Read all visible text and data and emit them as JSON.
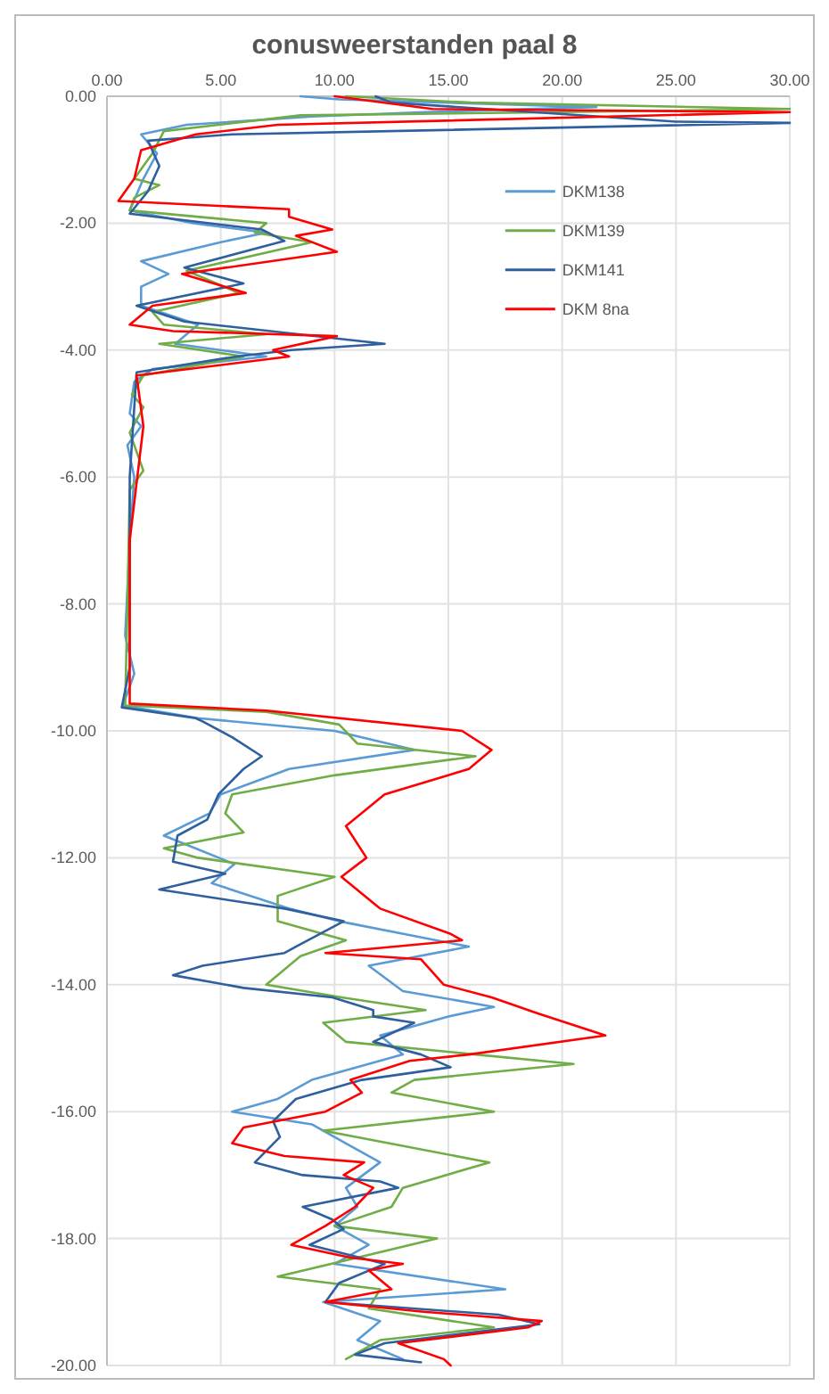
{
  "chart_data": {
    "type": "line",
    "title": "conusweerstanden paal 8",
    "xlim": [
      0,
      30
    ],
    "xticks": [
      {
        "value": 0,
        "label": "0.00"
      },
      {
        "value": 5,
        "label": "5.00"
      },
      {
        "value": 10,
        "label": "10.00"
      },
      {
        "value": 15,
        "label": "15.00"
      },
      {
        "value": 20,
        "label": "20.00"
      },
      {
        "value": 25,
        "label": "25.00"
      },
      {
        "value": 30,
        "label": "30.00"
      }
    ],
    "ylim": [
      -20,
      0
    ],
    "yticks": [
      {
        "value": 0,
        "label": "0.00"
      },
      {
        "value": -2,
        "label": "-2.00"
      },
      {
        "value": -4,
        "label": "-4.00"
      },
      {
        "value": -6,
        "label": "-6.00"
      },
      {
        "value": -8,
        "label": "-8.00"
      },
      {
        "value": -10,
        "label": "-10.00"
      },
      {
        "value": -12,
        "label": "-12.00"
      },
      {
        "value": -14,
        "label": "-14.00"
      },
      {
        "value": -16,
        "label": "-16.00"
      },
      {
        "value": -18,
        "label": "-18.00"
      },
      {
        "value": -20,
        "label": "-20.00"
      }
    ],
    "grid": true,
    "legend": "top right",
    "marker": "none",
    "line_style": "solid",
    "series": [
      {
        "name": "DKM138",
        "color": "#5b9bd5",
        "x": [
          8.5,
          10.2,
          21.5,
          14,
          9,
          3.5,
          1.5,
          2.2,
          1.6,
          1,
          3.8,
          7,
          5,
          1.5,
          2.7,
          1.5,
          1.5,
          4,
          3,
          7,
          2,
          1.2,
          1,
          1.5,
          0.9,
          1.2,
          1,
          0.8,
          1.2,
          0.7,
          4,
          10,
          13.5,
          8,
          6.5,
          5,
          4.5,
          2.5,
          5.6,
          4.6,
          8,
          10.2,
          15.9,
          11.5,
          13,
          17,
          15,
          12,
          13,
          9,
          7.5,
          5.5,
          9,
          10.5,
          12,
          10.5,
          11,
          10,
          11.5,
          10,
          17.5,
          9.5,
          12,
          11,
          13
        ],
        "values": [
          0,
          -0.05,
          -0.17,
          -0.25,
          -0.32,
          -0.45,
          -0.6,
          -0.9,
          -1.3,
          -1.8,
          -2,
          -2.15,
          -2.3,
          -2.6,
          -2.8,
          -3,
          -3.3,
          -3.6,
          -3.9,
          -4.1,
          -4.3,
          -4.5,
          -5,
          -5.2,
          -5.5,
          -6,
          -7,
          -8.5,
          -9.1,
          -9.6,
          -9.8,
          -10,
          -10.3,
          -10.6,
          -10.8,
          -11,
          -11.3,
          -11.65,
          -12.1,
          -12.4,
          -12.8,
          -13,
          -13.4,
          -13.7,
          -14.1,
          -14.35,
          -14.5,
          -14.8,
          -15.1,
          -15.5,
          -15.8,
          -16,
          -16.2,
          -16.5,
          -16.8,
          -17.2,
          -17.5,
          -17.8,
          -18.1,
          -18.4,
          -18.8,
          -19,
          -19.3,
          -19.6,
          -19.9
        ]
      },
      {
        "name": "DKM139",
        "color": "#70ad47",
        "x": [
          10.5,
          16,
          30,
          20,
          8.5,
          2.5,
          2,
          1.2,
          2.3,
          1.2,
          1,
          7,
          6.5,
          9,
          3.5,
          5.8,
          2,
          2.5,
          7,
          2.3,
          6,
          1.6,
          1.1,
          1.6,
          1,
          1.6,
          1,
          0.9,
          0.8,
          7,
          10.2,
          11,
          16.2,
          10,
          5.5,
          5.2,
          6,
          2.5,
          4,
          10,
          7.5,
          7.5,
          10.5,
          8.5,
          7,
          10.3,
          14,
          9.5,
          10.5,
          20.5,
          13.5,
          12.5,
          17,
          9.5,
          16.8,
          13,
          12.5,
          10,
          14.5,
          11,
          7.5,
          12,
          11.5,
          17,
          12,
          10.5
        ],
        "values": [
          0,
          -0.1,
          -0.2,
          -0.25,
          -0.3,
          -0.55,
          -0.9,
          -1.3,
          -1.4,
          -1.6,
          -1.8,
          -2,
          -2.15,
          -2.3,
          -2.75,
          -3.1,
          -3.4,
          -3.6,
          -3.75,
          -3.9,
          -4.1,
          -4.4,
          -4.7,
          -4.9,
          -5.3,
          -5.9,
          -6.2,
          -8,
          -9.6,
          -9.7,
          -9.9,
          -10.2,
          -10.4,
          -10.7,
          -11,
          -11.3,
          -11.6,
          -11.85,
          -12,
          -12.3,
          -12.6,
          -13,
          -13.3,
          -13.55,
          -14,
          -14.2,
          -14.4,
          -14.6,
          -14.9,
          -15.25,
          -15.5,
          -15.7,
          -16,
          -16.3,
          -16.8,
          -17.2,
          -17.5,
          -17.8,
          -18,
          -18.3,
          -18.6,
          -18.8,
          -19.1,
          -19.4,
          -19.6,
          -19.9
        ]
      },
      {
        "name": "DKM141",
        "color": "#2e5f9e",
        "x": [
          11.8,
          12.5,
          25,
          30,
          5.5,
          1.8,
          2.3,
          1.8,
          1,
          6.8,
          7.8,
          3.4,
          6,
          1.3,
          3.4,
          12.2,
          8.1,
          5.7,
          1.3,
          1,
          1,
          0.65,
          3.9,
          4.2,
          5.5,
          6.8,
          6,
          4.9,
          4.4,
          3.1,
          2.9,
          5.2,
          2.3,
          7.8,
          10.4,
          8.3,
          7.8,
          4.2,
          2.9,
          6,
          9.9,
          11.7,
          11.7,
          13.5,
          11.7,
          13.8,
          15.1,
          11.2,
          8.3,
          7.3,
          7.6,
          6.5,
          8.6,
          12,
          12.8,
          8.6,
          9.9,
          10.4,
          8.9,
          12.2,
          10.2,
          9.6,
          17.2,
          19,
          12.2,
          10.9,
          13.8
        ],
        "values": [
          0,
          -0.1,
          -0.4,
          -0.42,
          -0.6,
          -0.7,
          -1.1,
          -1.5,
          -1.85,
          -2.1,
          -2.28,
          -2.7,
          -2.95,
          -3.3,
          -3.55,
          -3.9,
          -4,
          -4.1,
          -4.35,
          -6,
          -9,
          -9.63,
          -9.8,
          -9.85,
          -10.1,
          -10.4,
          -10.6,
          -11,
          -11.4,
          -11.65,
          -12.06,
          -12.25,
          -12.5,
          -12.8,
          -13,
          -13.4,
          -13.5,
          -13.7,
          -13.85,
          -14.05,
          -14.2,
          -14.4,
          -14.5,
          -14.6,
          -14.9,
          -15.1,
          -15.3,
          -15.5,
          -15.8,
          -16.15,
          -16.4,
          -16.8,
          -17,
          -17.1,
          -17.2,
          -17.5,
          -17.7,
          -17.85,
          -18.1,
          -18.4,
          -18.7,
          -19,
          -19.2,
          -19.35,
          -19.65,
          -19.83,
          -19.95
        ]
      },
      {
        "name": "DKM 8na",
        "color": "#ff0000",
        "x": [
          10,
          14.3,
          30,
          7.5,
          3.9,
          1.5,
          1.2,
          0.5,
          8,
          8,
          9.9,
          8.3,
          10.1,
          3.3,
          6.1,
          2,
          1,
          2.9,
          10.1,
          7.3,
          8,
          1.3,
          1.6,
          1,
          1,
          7,
          15.6,
          16.9,
          15.9,
          12.2,
          10.5,
          11.4,
          10.3,
          12,
          15.1,
          15.6,
          9.6,
          13.8,
          14.8,
          16.9,
          18.9,
          21.9,
          15.9,
          13.3,
          10.7,
          11.2,
          9.6,
          6,
          5.5,
          7.8,
          11.3,
          10.4,
          11.7,
          10.9,
          9.6,
          8.1,
          10.7,
          13,
          11.5,
          12.5,
          9.6,
          13.8,
          19.1,
          18.5,
          12.8,
          14.8,
          15.1
        ],
        "values": [
          0,
          -0.2,
          -0.25,
          -0.45,
          -0.6,
          -0.85,
          -1.3,
          -1.65,
          -1.78,
          -1.9,
          -2.1,
          -2.2,
          -2.45,
          -2.8,
          -3.1,
          -3.3,
          -3.6,
          -3.7,
          -3.78,
          -4,
          -4.1,
          -4.4,
          -5.2,
          -7,
          -9.57,
          -9.68,
          -10,
          -10.3,
          -10.6,
          -11,
          -11.5,
          -12,
          -12.3,
          -12.8,
          -13.2,
          -13.3,
          -13.5,
          -13.6,
          -14,
          -14.2,
          -14.45,
          -14.8,
          -15.1,
          -15.2,
          -15.5,
          -15.7,
          -16,
          -16.25,
          -16.5,
          -16.7,
          -16.8,
          -17,
          -17.2,
          -17.5,
          -17.8,
          -18.1,
          -18.3,
          -18.4,
          -18.5,
          -18.8,
          -19,
          -19.15,
          -19.3,
          -19.4,
          -19.65,
          -19.9,
          -20
        ]
      }
    ]
  }
}
